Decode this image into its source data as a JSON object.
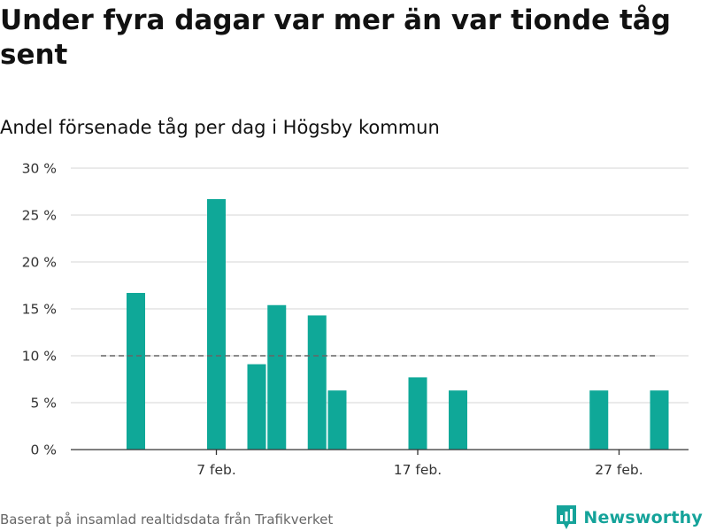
{
  "header": {
    "title": "Under fyra dagar var mer än var tionde tåg sent",
    "subtitle": "Andel försenade tåg per dag i Högsby kommun"
  },
  "footer": {
    "source": "Baserat på insamlad realtidsdata från Trafikverket",
    "brand": "Newsworthy"
  },
  "colors": {
    "bar": "#0fa898",
    "reference_line": "#666666",
    "grid": "#dddddd",
    "brand": "#15a39a"
  },
  "chart_data": {
    "type": "bar",
    "title": "Andel försenade tåg per dag i Högsby kommun",
    "xlabel": "",
    "ylabel": "",
    "x": [
      "2024-02-03",
      "2024-02-07",
      "2024-02-09",
      "2024-02-10",
      "2024-02-12",
      "2024-02-13",
      "2024-02-17",
      "2024-02-19",
      "2024-02-26",
      "2024-02-29"
    ],
    "values": [
      16.7,
      26.7,
      9.1,
      15.4,
      14.3,
      6.3,
      7.7,
      6.3,
      6.3,
      6.3
    ],
    "ylim": [
      0,
      30
    ],
    "yticks": [
      0,
      5,
      10,
      15,
      20,
      25,
      30
    ],
    "ytick_labels": [
      "0 %",
      "5 %",
      "10 %",
      "15 %",
      "20 %",
      "25 %",
      "30 %"
    ],
    "xticks": [
      {
        "date": "2024-02-07",
        "label": "7 feb."
      },
      {
        "date": "2024-02-17",
        "label": "17 feb."
      },
      {
        "date": "2024-02-27",
        "label": "27 feb."
      }
    ],
    "reference_line": {
      "value": 10,
      "style": "dashed"
    },
    "grid": true,
    "legend": "none"
  }
}
